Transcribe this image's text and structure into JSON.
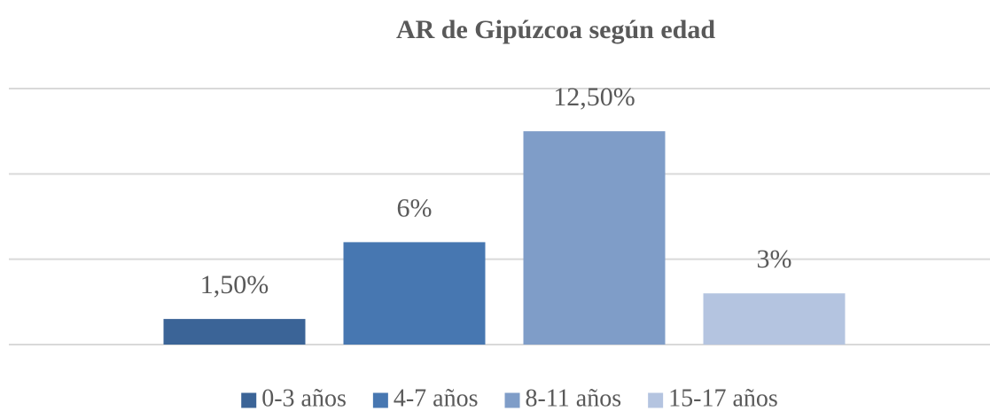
{
  "chart_data": {
    "type": "bar",
    "title": "AR de Gipúzcoa según edad",
    "series": [
      {
        "name": "0-3 años",
        "color": "#3b6497",
        "values": [
          1.5
        ],
        "value_labels": [
          "1,50%"
        ]
      },
      {
        "name": "4-7 años",
        "color": "#4777b1",
        "values": [
          6
        ],
        "value_labels": [
          "6%"
        ]
      },
      {
        "name": "8-11 años",
        "color": "#7f9dc8",
        "values": [
          12.5
        ],
        "value_labels": [
          "12,50%"
        ]
      },
      {
        "name": "15-17 años",
        "color": "#b4c4e0",
        "values": [
          3
        ],
        "value_labels": [
          "3%"
        ]
      }
    ],
    "ylim": [
      0,
      15
    ],
    "yticks": [
      0,
      5,
      10,
      15
    ],
    "grid": true,
    "legend": "bottom"
  }
}
